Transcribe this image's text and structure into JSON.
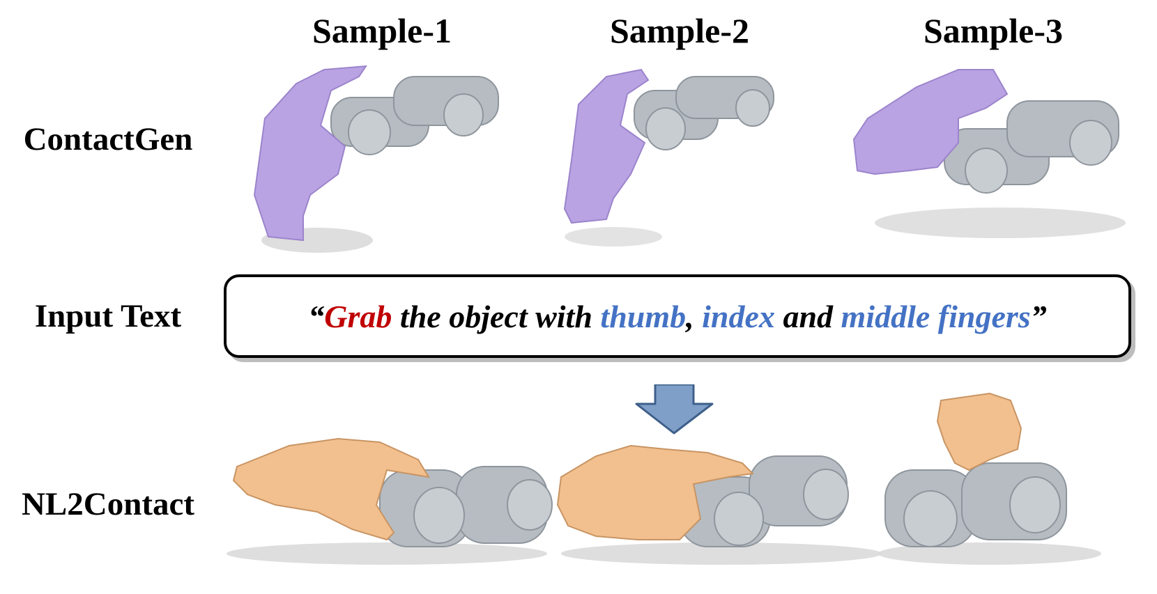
{
  "columns": [
    {
      "label": "Sample-1"
    },
    {
      "label": "Sample-2"
    },
    {
      "label": "Sample-3"
    }
  ],
  "rows": {
    "contactgen": "ContactGen",
    "input_text": "Input Text",
    "nl2contact": "NL2Contact"
  },
  "prompt": {
    "open_quote": "“",
    "verb": "Grab",
    "text1": " the object with ",
    "finger1": "thumb",
    "comma": ", ",
    "finger2": "index",
    "text2": " and ",
    "finger3": "middle fingers",
    "close_quote": "”"
  },
  "colors": {
    "contactgen_hand": "#b9a3e3",
    "nl2contact_hand": "#f2c08e",
    "object": "#b6bcc2",
    "verb_highlight": "#c00000",
    "finger_highlight": "#4472c4",
    "arrow_fill": "#7f9fc8"
  },
  "icons": {
    "arrow": "down-arrow-icon"
  }
}
